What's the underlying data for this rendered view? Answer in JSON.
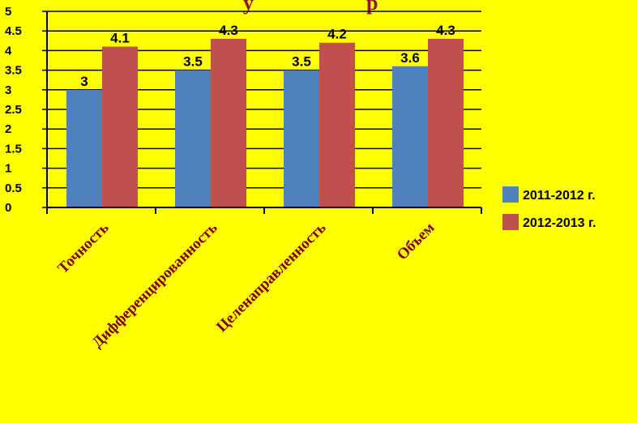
{
  "chart_data": {
    "type": "bar",
    "title": "",
    "title_partial": [
      "у",
      "р"
    ],
    "xlabel": "",
    "ylabel": "",
    "categories": [
      "Точность",
      "Дифференцированность",
      "Целенаправленность",
      "Объем"
    ],
    "series": [
      {
        "name": "2011-2012 г.",
        "color": "#4f81bd",
        "values": [
          3,
          3.5,
          3.5,
          3.6
        ]
      },
      {
        "name": "2012-2013 г.",
        "color": "#c0504d",
        "values": [
          4.1,
          4.3,
          4.2,
          4.3
        ]
      }
    ],
    "ylim": [
      0,
      5
    ],
    "yticks": [
      0,
      0.5,
      1,
      1.5,
      2,
      2.5,
      3,
      3.5,
      4,
      4.5,
      5
    ],
    "ytick_labels": [
      "0",
      "0.5",
      "1",
      "1.5",
      "2",
      "2.5",
      "3",
      "3.5",
      "4",
      "4.5",
      "5"
    ],
    "data_labels": [
      [
        "3",
        "3.5",
        "3.5",
        "3.6"
      ],
      [
        "4.1",
        "4.3",
        "4.2",
        "4.3"
      ]
    ],
    "grid": "horizontal",
    "legend_position": "right",
    "background_color": "#ffff00",
    "category_label_color": "#800000"
  }
}
